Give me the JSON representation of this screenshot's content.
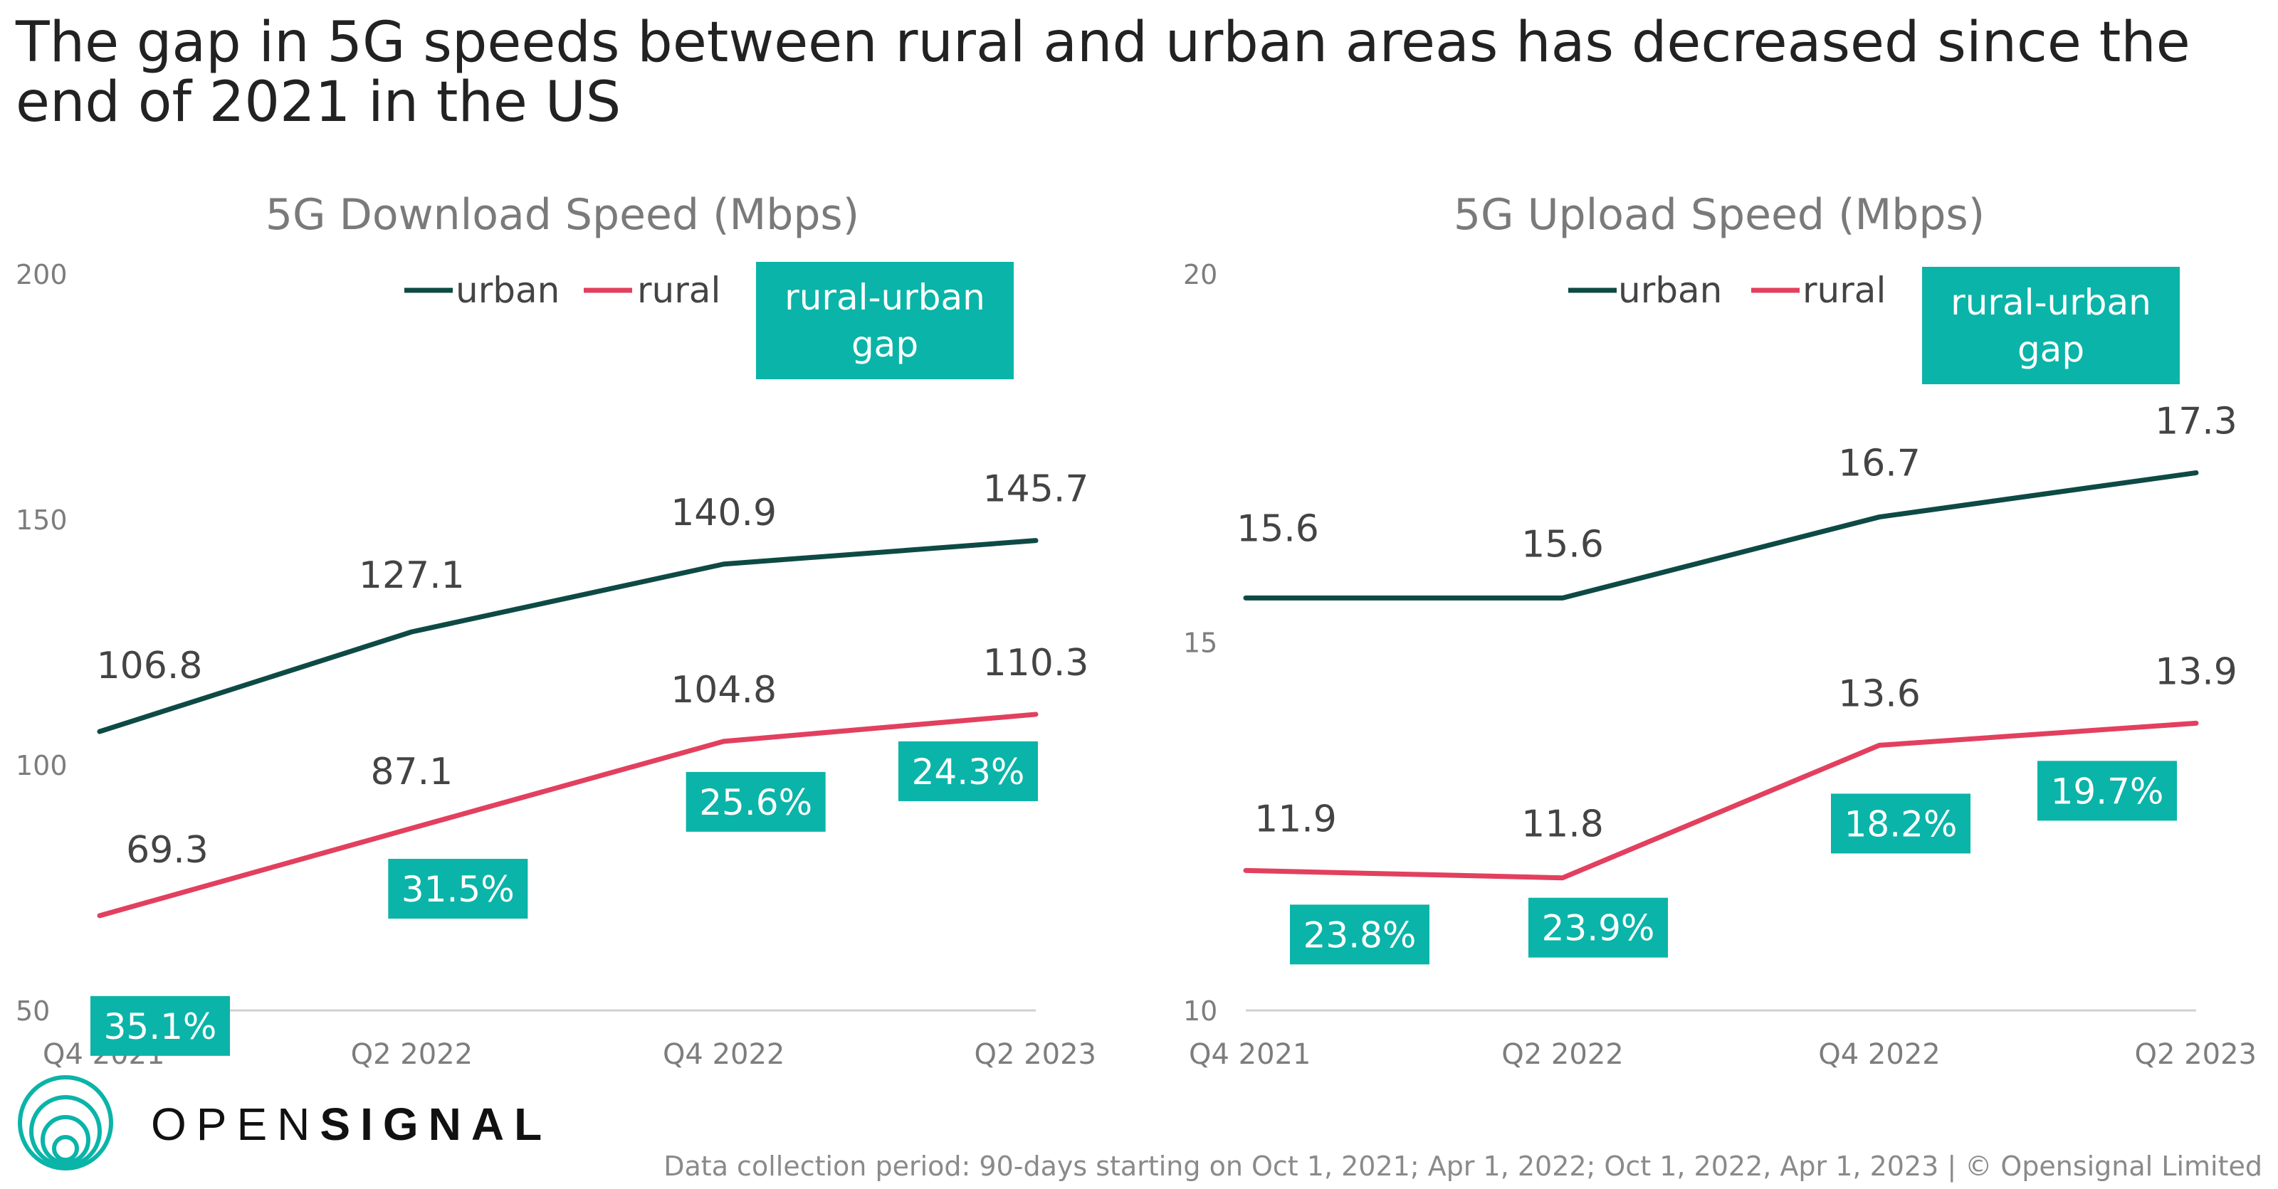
{
  "title": "The gap in 5G speeds between rural and urban areas has decreased since the end of 2021 in the US",
  "colors": {
    "urban": "#0e4a45",
    "rural": "#e2405e",
    "gap_box": "#0ab4a8",
    "axis_text": "#7d7d7d",
    "label_text": "#444444",
    "subtitle_text": "#7a7a7a"
  },
  "legend": {
    "urban": "urban",
    "rural": "rural",
    "gap": [
      "rural-urban",
      "gap"
    ]
  },
  "brand": {
    "light": "OPEN",
    "bold": "SIGNAL",
    "logo_icon": "opensignal-concentric-circles-icon"
  },
  "footnote": "Data collection period: 90-days starting on Oct 1, 2021; Apr 1, 2022; Oct 1, 2022, Apr 1, 2023 | © Opensignal Limited",
  "chart_data": [
    {
      "type": "line",
      "title": "5G Download Speed (Mbps)",
      "categories": [
        "Q4 2021",
        "Q2 2022",
        "Q4 2022",
        "Q2 2023"
      ],
      "ylim": [
        50,
        200
      ],
      "yticks": [
        50,
        100,
        150,
        200
      ],
      "grid": false,
      "series": [
        {
          "name": "urban",
          "values": [
            106.8,
            127.1,
            140.9,
            145.7
          ],
          "labels": [
            "106.8",
            "127.1",
            "140.9",
            "145.7"
          ]
        },
        {
          "name": "rural",
          "values": [
            69.3,
            87.1,
            104.8,
            110.3
          ],
          "labels": [
            "69.3",
            "87.1",
            "104.8",
            "110.3"
          ]
        }
      ],
      "gap_labels": [
        "35.1%",
        "31.5%",
        "25.6%",
        "24.3%"
      ]
    },
    {
      "type": "line",
      "title": "5G Upload Speed (Mbps)",
      "categories": [
        "Q4 2021",
        "Q2 2022",
        "Q4 2022",
        "Q2 2023"
      ],
      "ylim": [
        10,
        20
      ],
      "yticks": [
        10,
        15,
        20
      ],
      "grid": false,
      "series": [
        {
          "name": "urban",
          "values": [
            15.6,
            15.6,
            16.7,
            17.3
          ],
          "labels": [
            "15.6",
            "15.6",
            "16.7",
            "17.3"
          ]
        },
        {
          "name": "rural",
          "values": [
            11.9,
            11.8,
            13.6,
            13.9
          ],
          "labels": [
            "11.9",
            "11.8",
            "13.6",
            "13.9"
          ]
        }
      ],
      "gap_labels": [
        "23.8%",
        "23.9%",
        "18.2%",
        "19.7%"
      ]
    }
  ]
}
